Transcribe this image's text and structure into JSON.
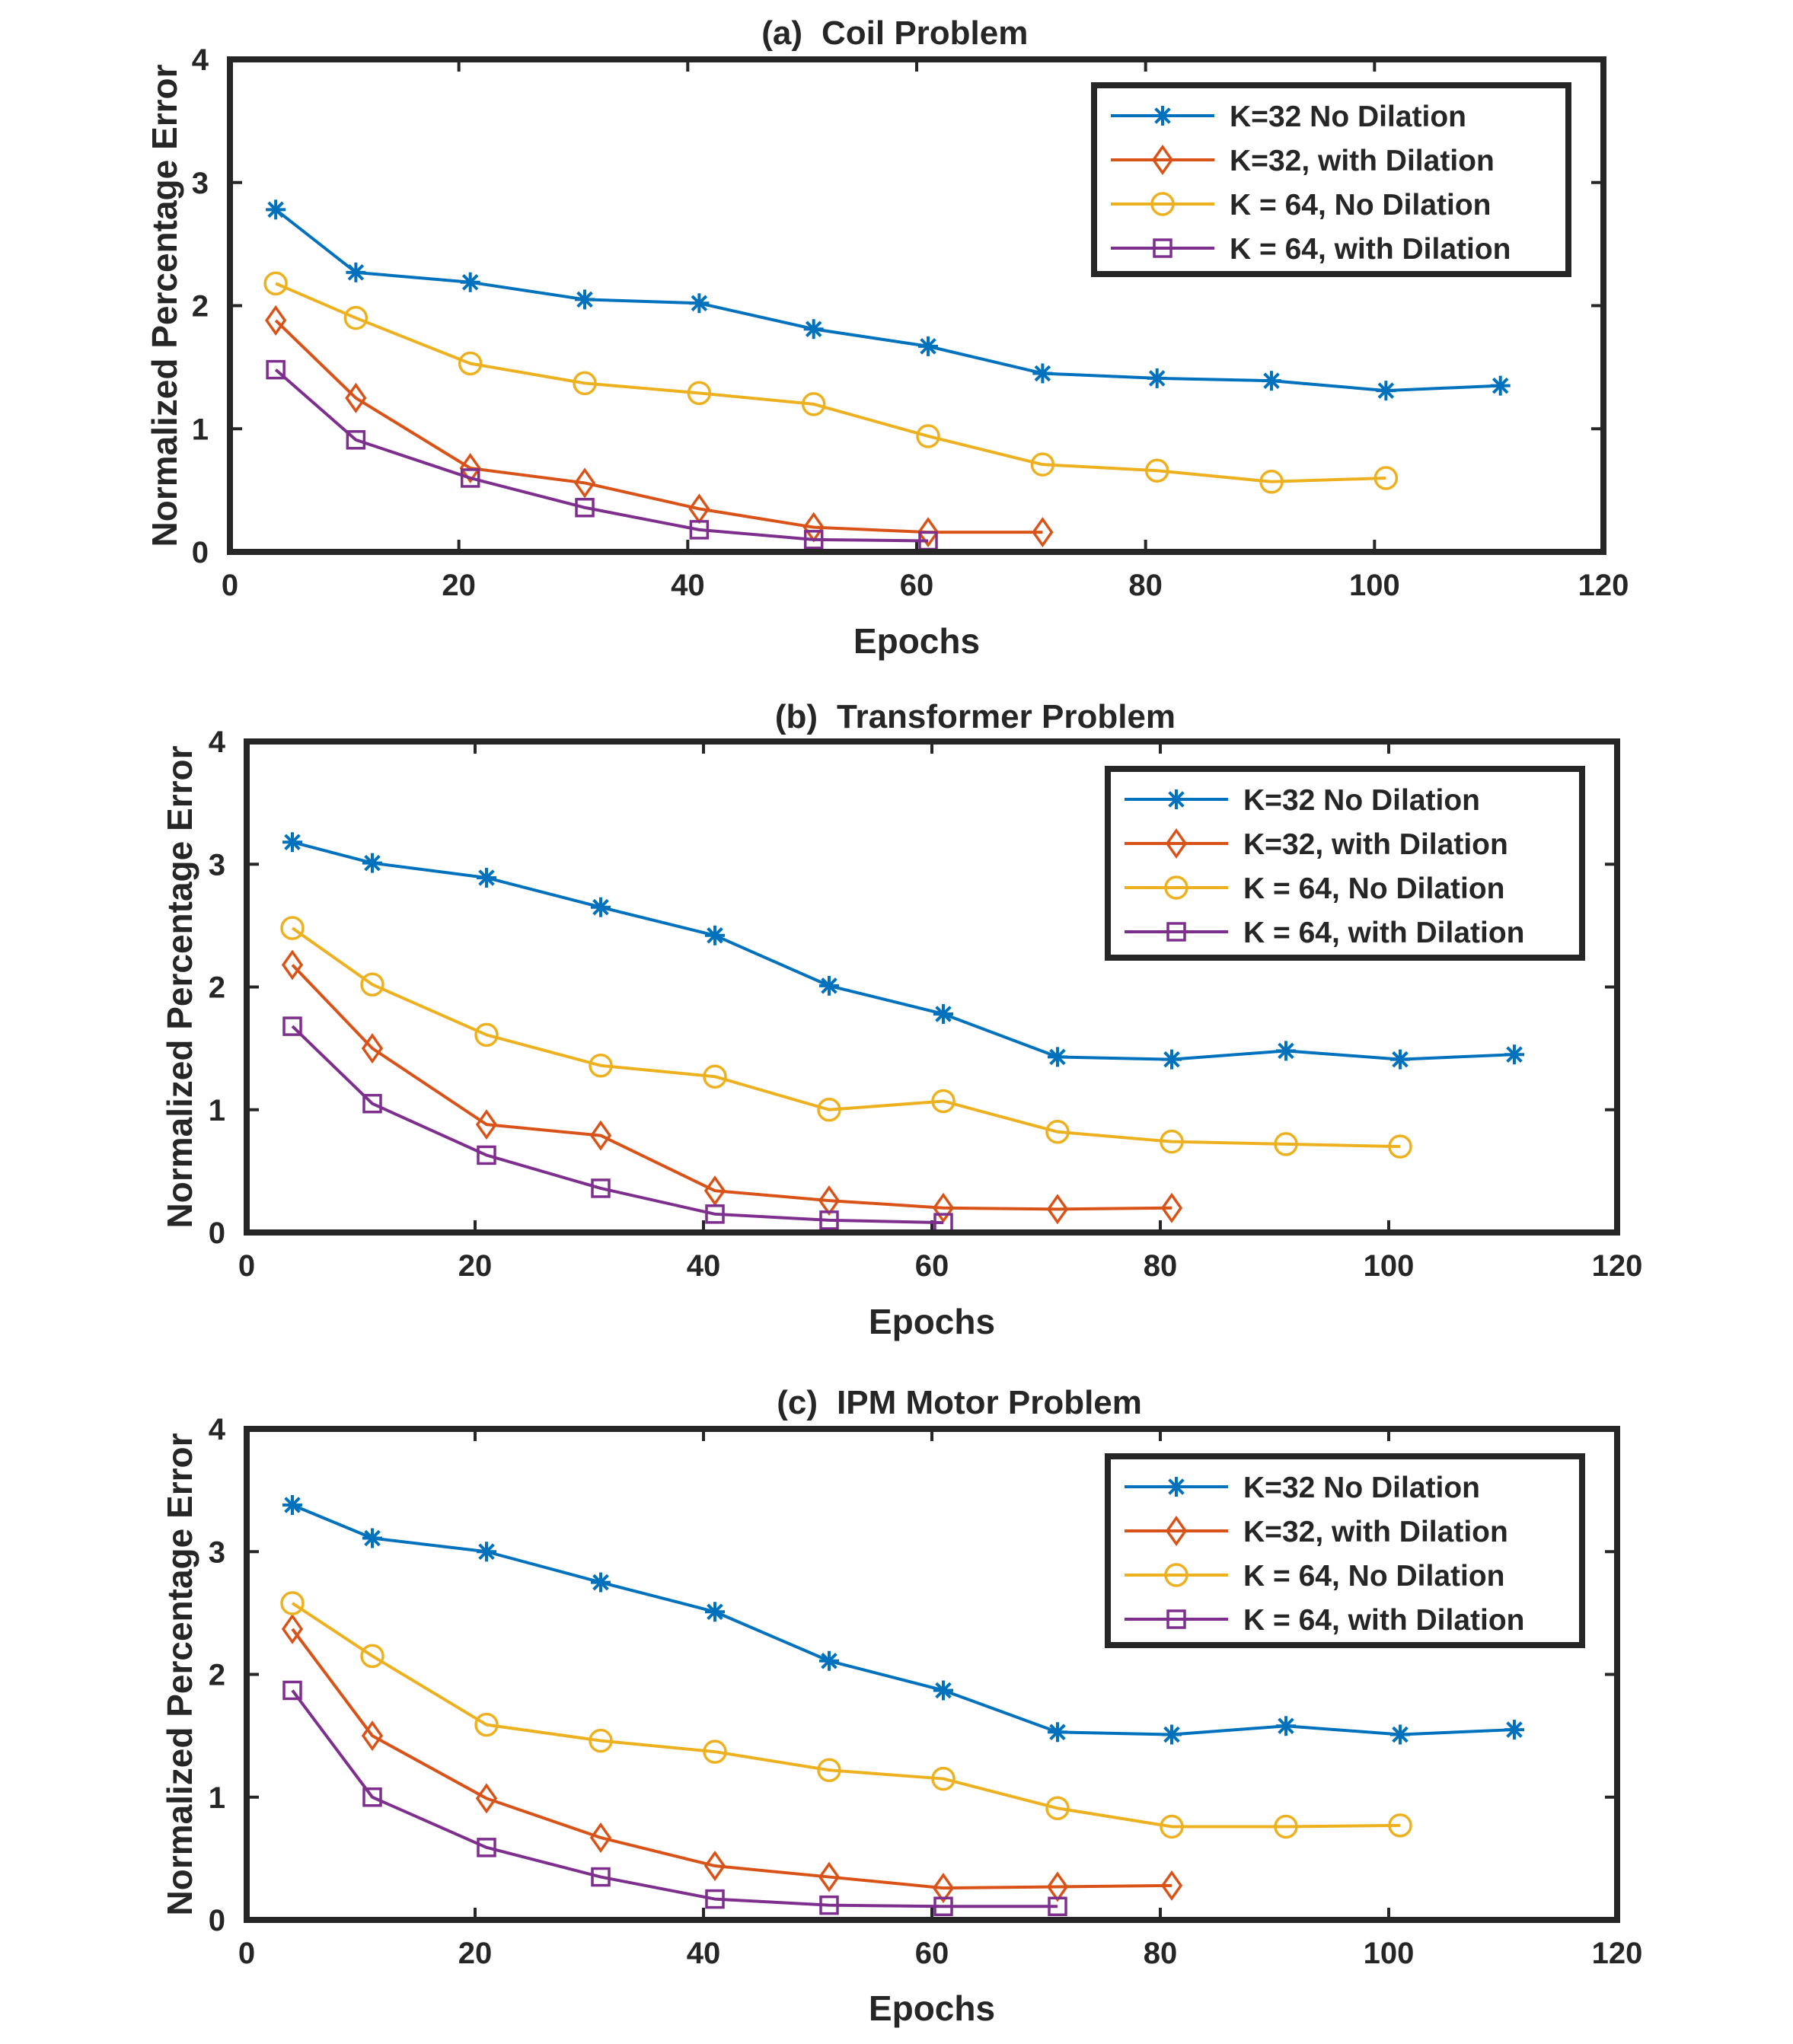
{
  "chart_data": [
    {
      "type": "line",
      "title_prefix": "(a)",
      "title": "Coil Problem",
      "xlabel": "Epochs",
      "ylabel": "Normalized Percentage Error",
      "xlim": [
        0,
        120
      ],
      "ylim": [
        0,
        4
      ],
      "xticks": [
        "0",
        "20",
        "40",
        "60",
        "80",
        "100",
        "120"
      ],
      "yticks": [
        "0",
        "1",
        "2",
        "3",
        "4"
      ],
      "legend_position": "top-right",
      "grid": false,
      "series": [
        {
          "name": "K=32 No Dilation",
          "color": "#0072BD",
          "marker": "asterisk",
          "x": [
            4,
            11,
            21,
            31,
            41,
            51,
            61,
            71,
            81,
            91,
            101,
            111
          ],
          "y": [
            2.78,
            2.27,
            2.19,
            2.05,
            2.02,
            1.81,
            1.67,
            1.45,
            1.41,
            1.39,
            1.31,
            1.35
          ]
        },
        {
          "name": "K=32, with Dilation",
          "color": "#D95319",
          "marker": "diamond",
          "x": [
            4,
            11,
            21,
            31,
            41,
            51,
            61,
            71
          ],
          "y": [
            1.88,
            1.25,
            0.68,
            0.56,
            0.35,
            0.2,
            0.16,
            0.16
          ]
        },
        {
          "name": "K = 64, No Dilation",
          "color": "#EDB120",
          "marker": "circle",
          "x": [
            4,
            11,
            21,
            31,
            41,
            51,
            61,
            71,
            81,
            91,
            101
          ],
          "y": [
            2.18,
            1.9,
            1.53,
            1.37,
            1.29,
            1.2,
            0.94,
            0.71,
            0.66,
            0.57,
            0.6
          ]
        },
        {
          "name": "K = 64, with Dilation",
          "color": "#7E2F8E",
          "marker": "square",
          "x": [
            4,
            11,
            21,
            31,
            41,
            51,
            61
          ],
          "y": [
            1.48,
            0.91,
            0.6,
            0.36,
            0.18,
            0.1,
            0.09
          ]
        }
      ]
    },
    {
      "type": "line",
      "title_prefix": "(b)",
      "title": "Transformer Problem",
      "xlabel": "Epochs",
      "ylabel": "Normalized Percentage Error",
      "xlim": [
        0,
        120
      ],
      "ylim": [
        0,
        4
      ],
      "xticks": [
        "0",
        "20",
        "40",
        "60",
        "80",
        "100",
        "120"
      ],
      "yticks": [
        "0",
        "1",
        "2",
        "3",
        "4"
      ],
      "legend_position": "top-right",
      "grid": false,
      "series": [
        {
          "name": "K=32 No Dilation",
          "color": "#0072BD",
          "marker": "asterisk",
          "x": [
            4,
            11,
            21,
            31,
            41,
            51,
            61,
            71,
            81,
            91,
            101,
            111
          ],
          "y": [
            3.18,
            3.01,
            2.89,
            2.65,
            2.42,
            2.01,
            1.78,
            1.43,
            1.41,
            1.48,
            1.41,
            1.45
          ]
        },
        {
          "name": "K=32, with Dilation",
          "color": "#D95319",
          "marker": "diamond",
          "x": [
            4,
            11,
            21,
            31,
            41,
            51,
            61,
            71,
            81
          ],
          "y": [
            2.18,
            1.5,
            0.88,
            0.79,
            0.34,
            0.26,
            0.2,
            0.19,
            0.2
          ]
        },
        {
          "name": "K = 64, No Dilation",
          "color": "#EDB120",
          "marker": "circle",
          "x": [
            4,
            11,
            21,
            31,
            41,
            51,
            61,
            71,
            81,
            91,
            101
          ],
          "y": [
            2.48,
            2.02,
            1.61,
            1.36,
            1.27,
            1.0,
            1.07,
            0.82,
            0.74,
            0.72,
            0.7
          ]
        },
        {
          "name": "K = 64, with Dilation",
          "color": "#7E2F8E",
          "marker": "square",
          "x": [
            4,
            11,
            21,
            31,
            41,
            51,
            61
          ],
          "y": [
            1.68,
            1.05,
            0.63,
            0.36,
            0.15,
            0.1,
            0.08
          ]
        }
      ]
    },
    {
      "type": "line",
      "title_prefix": "(c)",
      "title": "IPM Motor Problem",
      "xlabel": "Epochs",
      "ylabel": "Normalized Percentage Error",
      "xlim": [
        0,
        120
      ],
      "ylim": [
        0,
        4
      ],
      "xticks": [
        "0",
        "20",
        "40",
        "60",
        "80",
        "100",
        "120"
      ],
      "yticks": [
        "0",
        "1",
        "2",
        "3",
        "4"
      ],
      "legend_position": "top-right",
      "grid": false,
      "series": [
        {
          "name": "K=32 No Dilation",
          "color": "#0072BD",
          "marker": "asterisk",
          "x": [
            4,
            11,
            21,
            31,
            41,
            51,
            61,
            71,
            81,
            91,
            101,
            111
          ],
          "y": [
            3.38,
            3.11,
            3.0,
            2.75,
            2.51,
            2.11,
            1.87,
            1.53,
            1.51,
            1.58,
            1.51,
            1.55
          ]
        },
        {
          "name": "K=32, with Dilation",
          "color": "#D95319",
          "marker": "diamond",
          "x": [
            4,
            11,
            21,
            31,
            41,
            51,
            61,
            71,
            81
          ],
          "y": [
            2.37,
            1.5,
            0.99,
            0.67,
            0.44,
            0.35,
            0.26,
            0.27,
            0.28
          ]
        },
        {
          "name": "K = 64, No Dilation",
          "color": "#EDB120",
          "marker": "circle",
          "x": [
            4,
            11,
            21,
            31,
            41,
            51,
            61,
            71,
            81,
            91,
            101
          ],
          "y": [
            2.58,
            2.15,
            1.59,
            1.46,
            1.37,
            1.22,
            1.15,
            0.91,
            0.76,
            0.76,
            0.77
          ]
        },
        {
          "name": "K = 64, with Dilation",
          "color": "#7E2F8E",
          "marker": "square",
          "x": [
            4,
            11,
            21,
            31,
            41,
            51,
            61,
            71
          ],
          "y": [
            1.87,
            1.0,
            0.59,
            0.35,
            0.17,
            0.12,
            0.11,
            0.11
          ]
        }
      ]
    }
  ]
}
